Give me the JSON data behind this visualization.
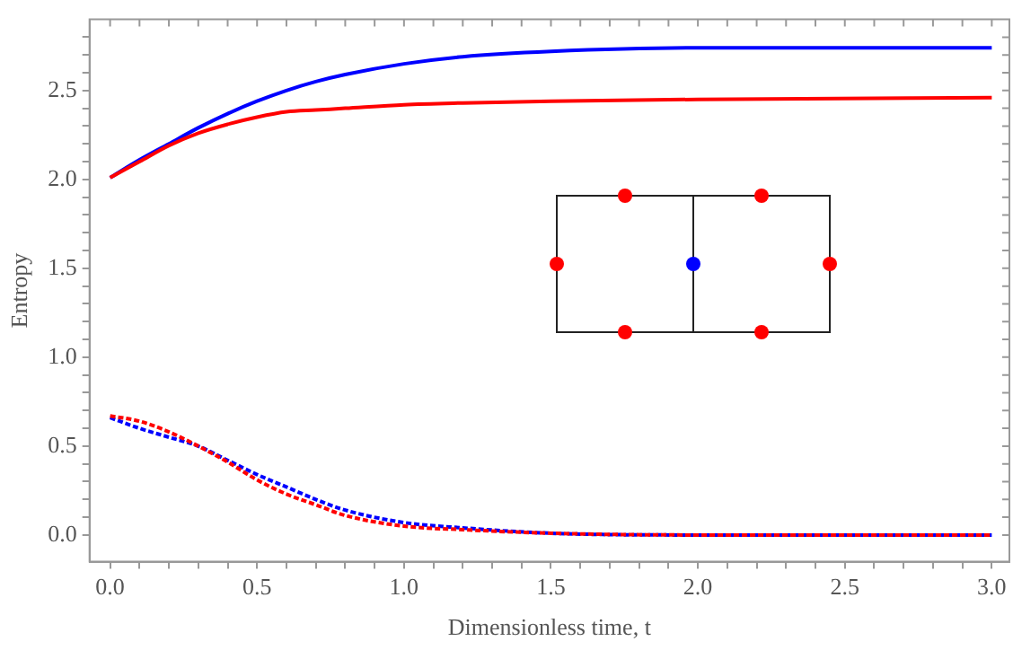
{
  "chart_data": {
    "type": "line",
    "xlabel": "Dimensionless time, t",
    "ylabel": "Entropy",
    "xlim": [
      -0.07,
      3.06
    ],
    "ylim": [
      -0.15,
      2.9
    ],
    "xticks": [
      {
        "value": 0,
        "label": "0.0"
      },
      {
        "value": 0.1,
        "label": null
      },
      {
        "value": 0.2,
        "label": null
      },
      {
        "value": 0.3,
        "label": null
      },
      {
        "value": 0.4,
        "label": null
      },
      {
        "value": 0.5,
        "label": "0.5"
      },
      {
        "value": 0.6,
        "label": null
      },
      {
        "value": 0.7,
        "label": null
      },
      {
        "value": 0.8,
        "label": null
      },
      {
        "value": 0.9,
        "label": null
      },
      {
        "value": 1,
        "label": "1.0"
      },
      {
        "value": 1.1,
        "label": null
      },
      {
        "value": 1.2,
        "label": null
      },
      {
        "value": 1.3,
        "label": null
      },
      {
        "value": 1.4,
        "label": null
      },
      {
        "value": 1.5,
        "label": "1.5"
      },
      {
        "value": 1.6,
        "label": null
      },
      {
        "value": 1.7,
        "label": null
      },
      {
        "value": 1.8,
        "label": null
      },
      {
        "value": 1.9,
        "label": null
      },
      {
        "value": 2,
        "label": "2.0"
      },
      {
        "value": 2.1,
        "label": null
      },
      {
        "value": 2.2,
        "label": null
      },
      {
        "value": 2.3,
        "label": null
      },
      {
        "value": 2.4,
        "label": null
      },
      {
        "value": 2.5,
        "label": "2.5"
      },
      {
        "value": 2.6,
        "label": null
      },
      {
        "value": 2.7,
        "label": null
      },
      {
        "value": 2.8,
        "label": null
      },
      {
        "value": 2.9,
        "label": null
      },
      {
        "value": 3,
        "label": "3.0"
      }
    ],
    "yticks": [
      {
        "value": 0,
        "label": "0.0"
      },
      {
        "value": 0.1,
        "label": null
      },
      {
        "value": 0.2,
        "label": null
      },
      {
        "value": 0.3,
        "label": null
      },
      {
        "value": 0.4,
        "label": null
      },
      {
        "value": 0.5,
        "label": "0.5"
      },
      {
        "value": 0.6,
        "label": null
      },
      {
        "value": 0.7,
        "label": null
      },
      {
        "value": 0.8,
        "label": null
      },
      {
        "value": 0.9,
        "label": null
      },
      {
        "value": 1,
        "label": "1.0"
      },
      {
        "value": 1.1,
        "label": null
      },
      {
        "value": 1.2,
        "label": null
      },
      {
        "value": 1.3,
        "label": null
      },
      {
        "value": 1.4,
        "label": null
      },
      {
        "value": 1.5,
        "label": "1.5"
      },
      {
        "value": 1.6,
        "label": null
      },
      {
        "value": 1.7,
        "label": null
      },
      {
        "value": 1.8,
        "label": null
      },
      {
        "value": 1.9,
        "label": null
      },
      {
        "value": 2,
        "label": "2.0"
      },
      {
        "value": 2.1,
        "label": null
      },
      {
        "value": 2.2,
        "label": null
      },
      {
        "value": 2.3,
        "label": null
      },
      {
        "value": 2.4,
        "label": null
      },
      {
        "value": 2.5,
        "label": "2.5"
      },
      {
        "value": 2.6,
        "label": null
      },
      {
        "value": 2.7,
        "label": null
      },
      {
        "value": 2.8,
        "label": null
      }
    ],
    "grid": false,
    "legend": false,
    "marker": "none",
    "x": [
      0,
      0.1,
      0.2,
      0.3,
      0.4,
      0.5,
      0.6,
      0.7,
      0.8,
      1.0,
      1.2,
      1.5,
      2.0,
      3.0
    ],
    "series": [
      {
        "color": "#0000ff",
        "line_style": "solid",
        "values": [
          2.01,
          2.11,
          2.2,
          2.29,
          2.37,
          2.44,
          2.5,
          2.55,
          2.59,
          2.65,
          2.69,
          2.72,
          2.74,
          2.74
        ]
      },
      {
        "color": "#ff0000",
        "line_style": "solid",
        "values": [
          2.01,
          2.1,
          2.19,
          2.26,
          2.31,
          2.35,
          2.38,
          2.39,
          2.4,
          2.42,
          2.43,
          2.44,
          2.45,
          2.46
        ]
      },
      {
        "color": "#0000ff",
        "line_style": "dashed",
        "values": [
          0.66,
          0.6,
          0.55,
          0.5,
          0.42,
          0.34,
          0.27,
          0.2,
          0.14,
          0.07,
          0.04,
          0.01,
          0,
          0
        ]
      },
      {
        "color": "#ff0000",
        "line_style": "dashed",
        "values": [
          0.67,
          0.64,
          0.58,
          0.5,
          0.41,
          0.31,
          0.23,
          0.17,
          0.11,
          0.05,
          0.03,
          0.01,
          0,
          0
        ]
      }
    ]
  }
}
